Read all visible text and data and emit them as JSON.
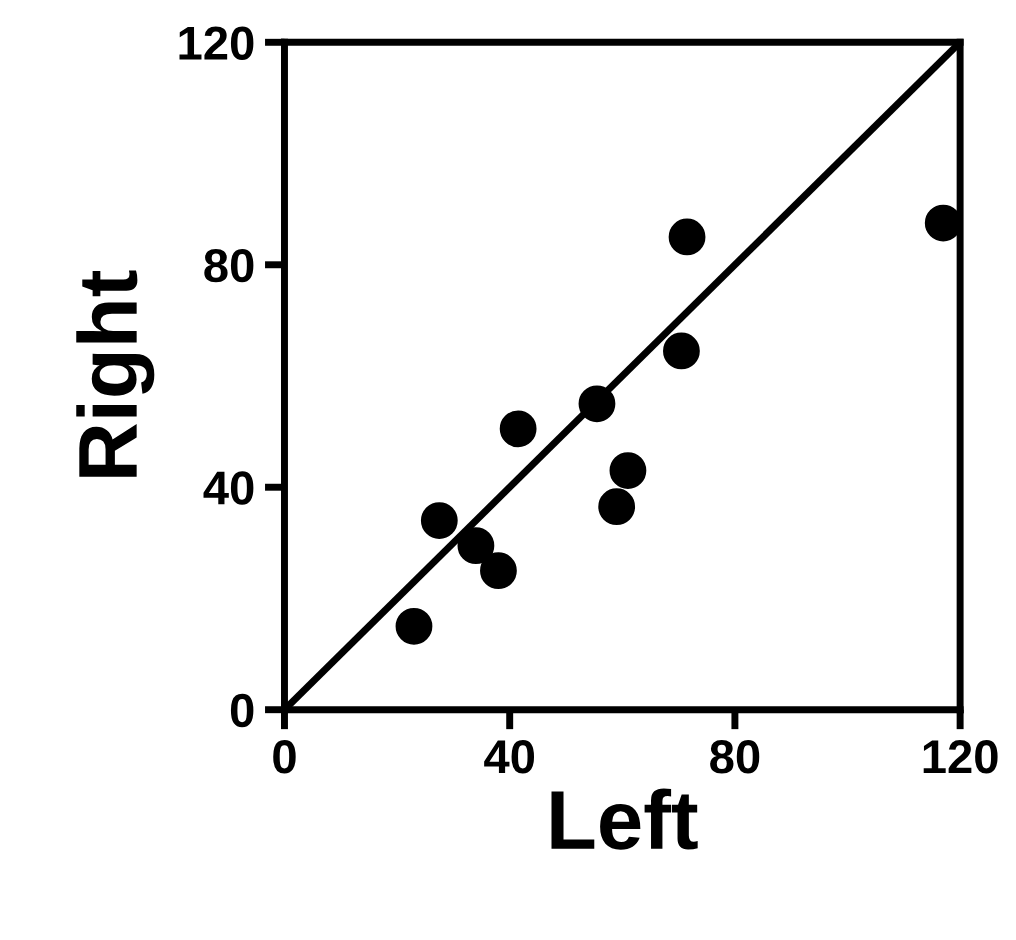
{
  "chart_data": {
    "type": "scatter",
    "xlabel": "Left",
    "ylabel": "Right",
    "xlim": [
      0,
      120
    ],
    "ylim": [
      0,
      120
    ],
    "xticks": [
      0,
      40,
      80,
      120
    ],
    "yticks": [
      0,
      40,
      80,
      120
    ],
    "grid": false,
    "series": [
      {
        "color": "#000000",
        "marker": "circle",
        "x": [
          23,
          27.5,
          34,
          38,
          41.5,
          55.5,
          59,
          61,
          70.5,
          71.5,
          117
        ],
        "values": [
          15,
          34,
          29.5,
          25,
          50.5,
          55,
          36.5,
          43,
          64.5,
          85,
          87.5
        ]
      },
      {
        "type": "line",
        "color": "#000000",
        "marker": "none",
        "x": [
          0,
          120
        ],
        "values": [
          0,
          120
        ],
        "line_style": "solid"
      }
    ]
  }
}
